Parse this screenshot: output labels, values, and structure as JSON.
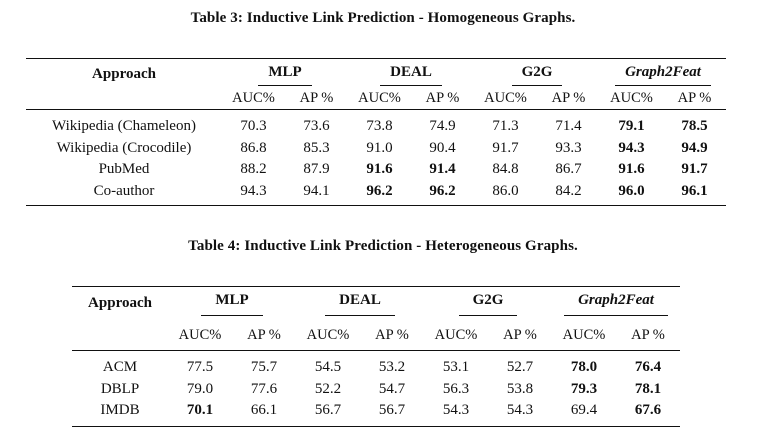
{
  "table3": {
    "caption": "Table 3: Inductive Link Prediction - Homogeneous Graphs.",
    "approach_label": "Approach",
    "groups": [
      "MLP",
      "DEAL",
      "G2G",
      "Graph2Feat"
    ],
    "metrics": [
      "AUC%",
      "AP %",
      "AUC%",
      "AP %",
      "AUC%",
      "AP %",
      "AUC%",
      "AP %"
    ],
    "rows": [
      {
        "name": "Wikipedia (Chameleon)",
        "values": [
          "70.3",
          "73.6",
          "73.8",
          "74.9",
          "71.3",
          "71.4",
          "79.1",
          "78.5"
        ]
      },
      {
        "name": "Wikipedia (Crocodile)",
        "values": [
          "86.8",
          "85.3",
          "91.0",
          "90.4",
          "91.7",
          "93.3",
          "94.3",
          "94.9"
        ]
      },
      {
        "name": "PubMed",
        "values": [
          "88.2",
          "87.9",
          "91.6",
          "91.4",
          "84.8",
          "86.7",
          "91.6",
          "91.7"
        ]
      },
      {
        "name": "Co-author",
        "values": [
          "94.3",
          "94.1",
          "96.2",
          "96.2",
          "86.0",
          "84.2",
          "96.0",
          "96.1"
        ]
      }
    ]
  },
  "table4": {
    "caption": "Table 4: Inductive Link Prediction - Heterogeneous Graphs.",
    "approach_label": "Approach",
    "groups": [
      "MLP",
      "DEAL",
      "G2G",
      "Graph2Feat"
    ],
    "metrics": [
      "AUC%",
      "AP %",
      "AUC%",
      "AP %",
      "AUC%",
      "AP %",
      "AUC%",
      "AP %"
    ],
    "rows": [
      {
        "name": "ACM",
        "values": [
          "77.5",
          "75.7",
          "54.5",
          "53.2",
          "53.1",
          "52.7",
          "78.0",
          "76.4"
        ]
      },
      {
        "name": "DBLP",
        "values": [
          "79.0",
          "77.6",
          "52.2",
          "54.7",
          "56.3",
          "53.8",
          "79.3",
          "78.1"
        ]
      },
      {
        "name": "IMDB",
        "values": [
          "70.1",
          "66.1",
          "56.7",
          "56.7",
          "54.3",
          "54.3",
          "69.4",
          "67.6"
        ]
      }
    ]
  }
}
